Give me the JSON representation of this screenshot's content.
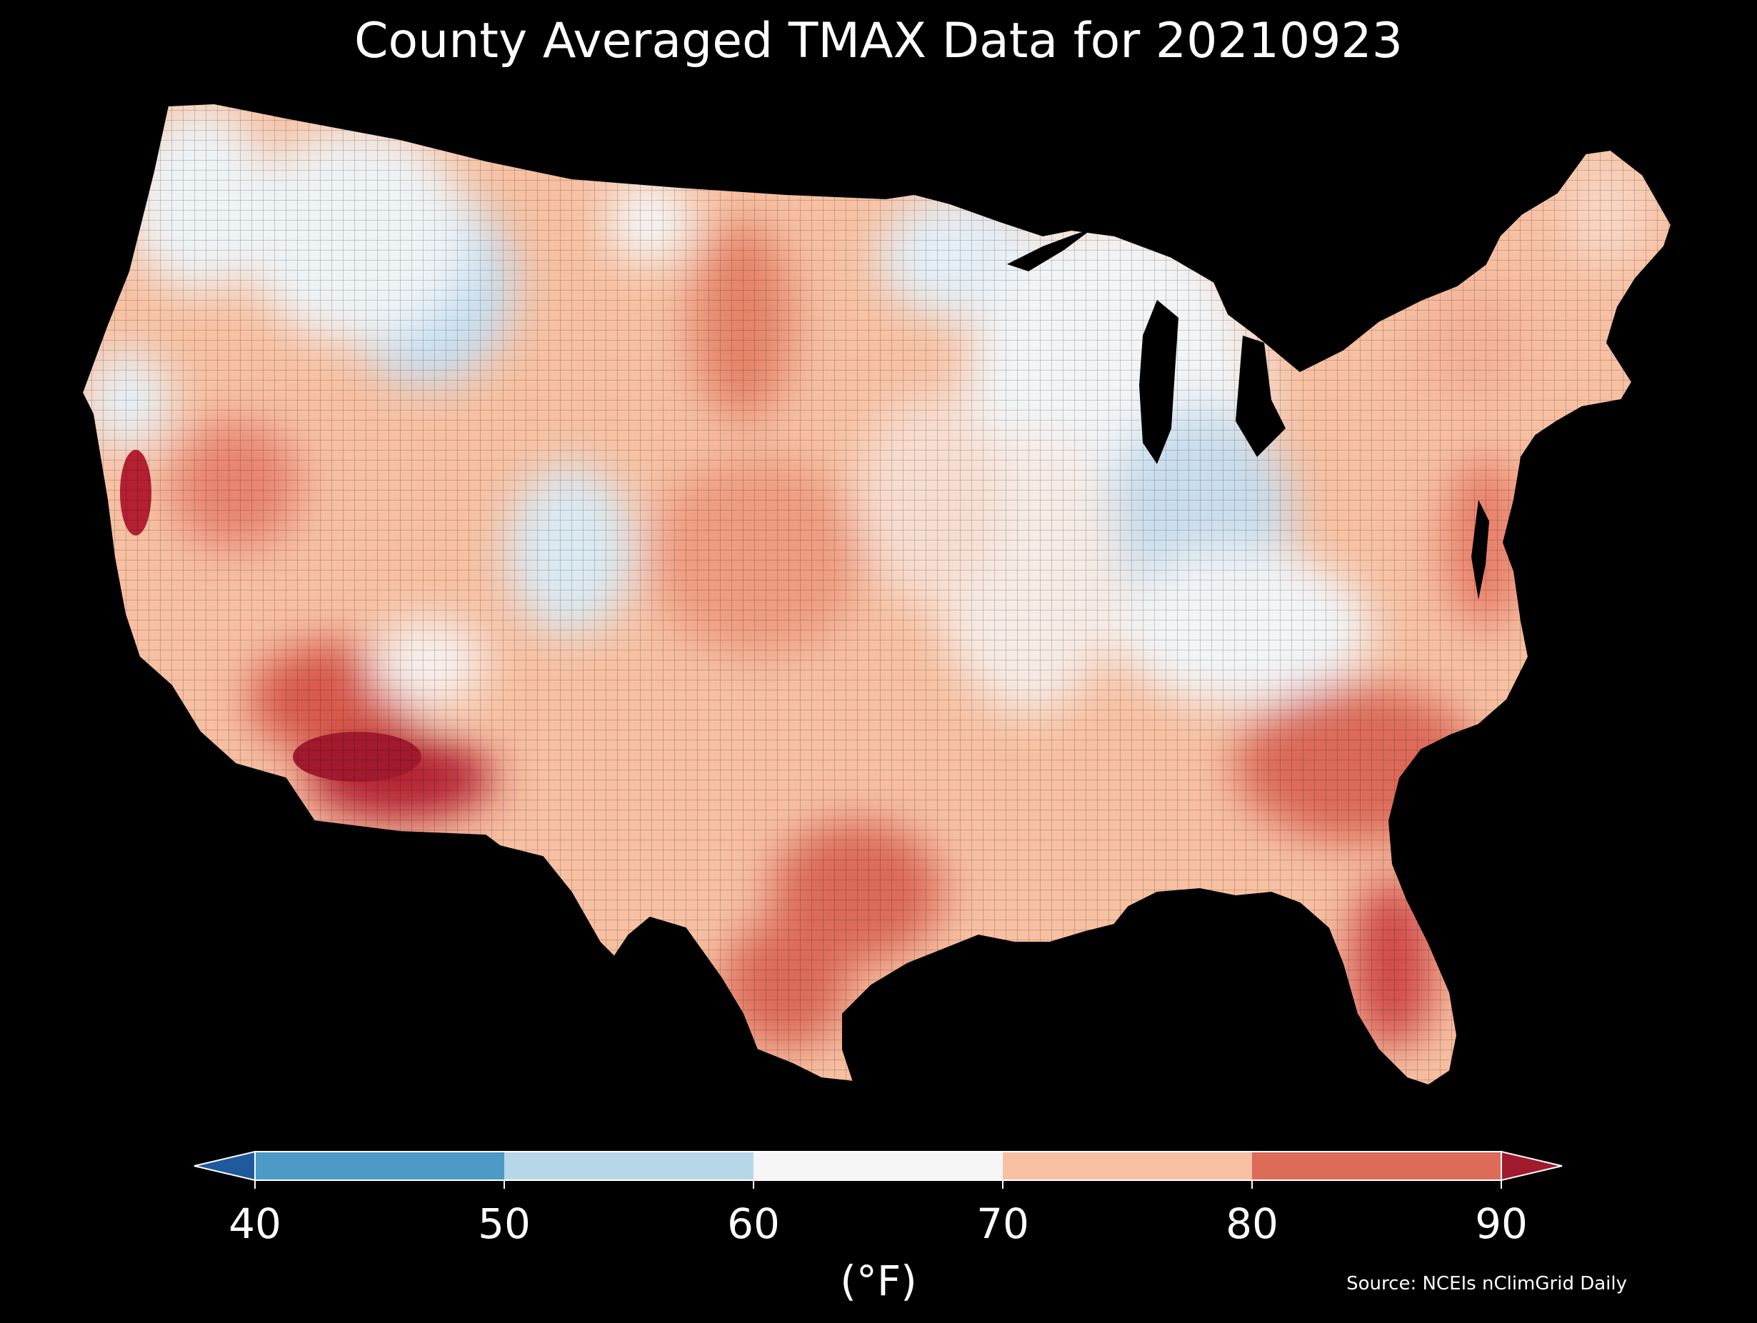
{
  "title": "County Averaged TMAX Data for 20210923",
  "colorbar": {
    "ticks": [
      "40",
      "50",
      "60",
      "70",
      "80",
      "90"
    ],
    "units": "(°F)",
    "bins": [
      {
        "range": "<40",
        "color": "#1e5a9c"
      },
      {
        "range": "40-50",
        "color": "#4d9ac7"
      },
      {
        "range": "50-60",
        "color": "#b7d7e8"
      },
      {
        "range": "60-70",
        "color": "#f5f5f5"
      },
      {
        "range": "70-80",
        "color": "#f7c0a2"
      },
      {
        "range": "80-90",
        "color": "#dc6b58"
      },
      {
        "range": ">90",
        "color": "#a11a2d"
      }
    ]
  },
  "source": "Source: NCEIs nClimGrid Daily",
  "map": {
    "background_color": "#000000",
    "land_base_color": "#f7c0a2",
    "border_color": "#000000"
  }
}
